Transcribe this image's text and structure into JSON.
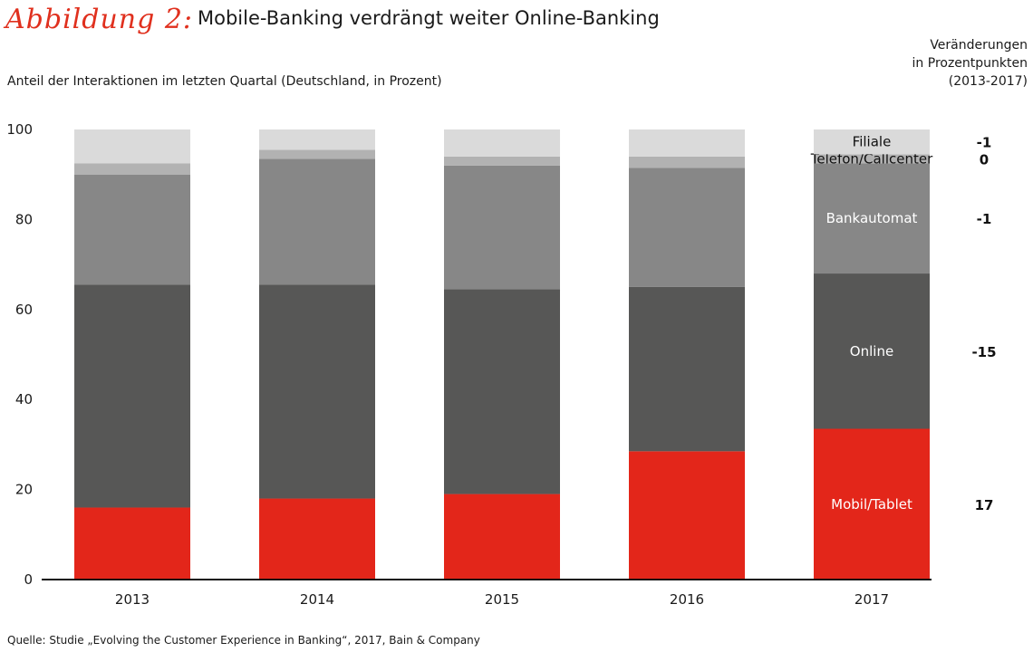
{
  "figure_label": "Abbildung 2:",
  "chart_data": {
    "type": "bar",
    "stacked": true,
    "title": "Mobile-Banking verdrängt weiter Online-Banking",
    "subtitle": "Anteil der Interaktionen im letzten Quartal (Deutschland, in Prozent)",
    "categories": [
      "2013",
      "2014",
      "2015",
      "2016",
      "2017"
    ],
    "ylim": [
      0,
      100
    ],
    "yticks": [
      0,
      20,
      40,
      60,
      80,
      100
    ],
    "series": [
      {
        "name": "Mobil/Tablet",
        "color": "#e3261a",
        "label_color": "#ffffff",
        "values": [
          16,
          18,
          19,
          28.5,
          33.5
        ],
        "change": "17"
      },
      {
        "name": "Online",
        "color": "#575756",
        "label_color": "#ffffff",
        "values": [
          49.5,
          47.5,
          45.5,
          36.5,
          34.5
        ],
        "change": "-15"
      },
      {
        "name": "Bankautomat",
        "color": "#878787",
        "label_color": "#ffffff",
        "values": [
          24.5,
          28,
          27.5,
          26.5,
          24.5
        ],
        "change": "-1"
      },
      {
        "name": "Telefon/Callcenter",
        "color": "#b2b2b2",
        "label_color": "#111111",
        "values": [
          2.5,
          2,
          2,
          2.5,
          2
        ],
        "change": "0"
      },
      {
        "name": "Filiale",
        "color": "#dadada",
        "label_color": "#111111",
        "values": [
          7.5,
          4.5,
          6,
          6,
          5.5
        ],
        "change": "-1"
      }
    ],
    "change_header": [
      "Veränderungen",
      "in Prozentpunkten",
      "(2013-2017)"
    ],
    "grid": false
  },
  "source": "Quelle: Studie „Evolving the Customer Experience in Banking“, 2017, Bain & Company"
}
